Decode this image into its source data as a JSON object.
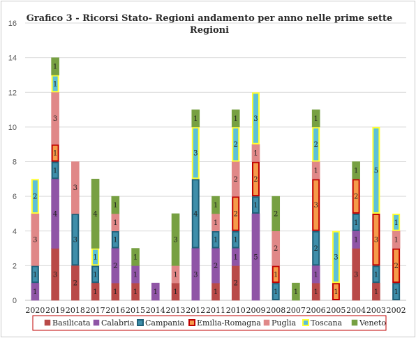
{
  "chart_data": {
    "type": "bar",
    "stacked": true,
    "title_lines": [
      "Grafico 3 - Ricorsi  Stato- Regioni andamento per anno nelle prime sette",
      "Regioni"
    ],
    "xlabel": "",
    "ylabel": "",
    "ylim": [
      0,
      16
    ],
    "yticks": [
      0,
      2,
      4,
      6,
      8,
      10,
      12,
      14,
      16
    ],
    "grid": true,
    "legend_position": "bottom",
    "categories": [
      "2020",
      "2019",
      "2018",
      "2017",
      "2016",
      "2015",
      "2014",
      "2013",
      "2012",
      "2011",
      "2010",
      "2009",
      "2008",
      "2007",
      "2006",
      "2005",
      "2004",
      "2003",
      "2002"
    ],
    "series": [
      {
        "name": "Basilicata",
        "fill": "#b94a48",
        "stroke": "#b94a48",
        "values": [
          0,
          3,
          2,
          1,
          1,
          1,
          0,
          1,
          0,
          1,
          2,
          0,
          0,
          0,
          1,
          0,
          3,
          1,
          0
        ]
      },
      {
        "name": "Calabria",
        "fill": "#8f55a6",
        "stroke": "#8f55a6",
        "values": [
          1,
          4,
          0,
          0,
          2,
          1,
          1,
          0,
          3,
          2,
          1,
          5,
          0,
          0,
          1,
          0,
          1,
          0,
          0
        ]
      },
      {
        "name": "Campania",
        "fill": "#3e8eaa",
        "stroke": "#1f5f78",
        "values": [
          1,
          1,
          3,
          1,
          1,
          0,
          0,
          0,
          4,
          1,
          1,
          1,
          1,
          0,
          2,
          0,
          1,
          1,
          1
        ]
      },
      {
        "name": "Emilia-Romagna",
        "fill": "#f59b4a",
        "stroke": "#c00000",
        "values": [
          0,
          1,
          0,
          0,
          0,
          0,
          0,
          0,
          0,
          0,
          2,
          2,
          1,
          0,
          3,
          1,
          2,
          3,
          2
        ]
      },
      {
        "name": "Puglia",
        "fill": "#e08888",
        "stroke": "#e08888",
        "values": [
          3,
          3,
          3,
          0,
          1,
          0,
          0,
          1,
          0,
          1,
          2,
          1,
          2,
          0,
          1,
          0,
          0,
          0,
          1
        ]
      },
      {
        "name": "Toscana",
        "fill": "#5dc0d8",
        "stroke": "#ffff33",
        "values": [
          2,
          1,
          0,
          1,
          0,
          0,
          0,
          0,
          3,
          0,
          2,
          3,
          0,
          0,
          2,
          3,
          0,
          5,
          1
        ]
      },
      {
        "name": "Veneto",
        "fill": "#77a042",
        "stroke": "#77a042",
        "values": [
          0,
          1,
          0,
          4,
          1,
          1,
          0,
          3,
          1,
          1,
          1,
          0,
          2,
          1,
          1,
          0,
          1,
          0,
          0
        ]
      }
    ]
  }
}
